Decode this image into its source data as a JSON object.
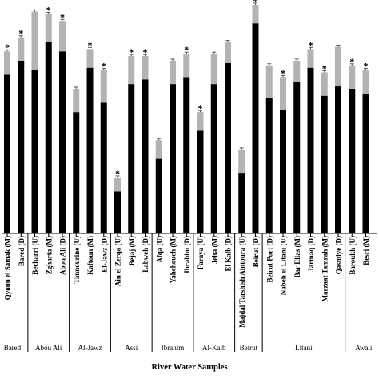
{
  "chart_data": {
    "type": "bar",
    "title": "",
    "xlabel": "River Water Samples",
    "ylabel": "",
    "ylim": [
      0,
      100
    ],
    "bar_color": "#000000",
    "error_color": "#b3b3b3",
    "categories": [
      "Qyoun el Samak (M)",
      "Bared (D)",
      "Becharri (U)",
      "Zgharta (M)",
      "Abou Ali (D)",
      "Tannourine (U)",
      "Kaftoun (M)",
      "El-Jawz (D)",
      "Ain el Zerqa (U)",
      "Bejaj (M)",
      "Labweh (D)",
      "Afqa (U)",
      "Yahchouch (M)",
      "Ibrahim (D)",
      "Faraya (U)",
      "Jeita (M)",
      "El Kalb (D)",
      "Majdal Tarshish Aintoura (U)",
      "Beirut (D)",
      "Beirut Port (D)",
      "Nabeh el Litani (U)",
      "Bar Elias (M)",
      "Jarmaq (D)",
      "Marzaat Tamrah (M)",
      "Qasmiye (D)",
      "Baroukh (U)",
      "Besri (M)"
    ],
    "values": [
      68,
      74,
      70,
      82,
      78,
      52,
      71,
      56,
      18,
      64,
      66,
      32,
      64,
      67,
      44,
      64,
      73,
      26,
      90,
      58,
      53,
      65,
      71,
      59,
      63,
      62,
      60
    ],
    "errors": [
      10,
      10,
      25,
      12,
      13,
      10,
      8,
      14,
      6,
      12,
      10,
      8,
      10,
      10,
      8,
      13,
      9,
      10,
      8,
      14,
      14,
      9,
      8,
      10,
      17,
      10,
      10
    ],
    "significant": [
      true,
      true,
      false,
      true,
      true,
      false,
      true,
      true,
      true,
      true,
      true,
      false,
      false,
      true,
      true,
      false,
      false,
      false,
      true,
      false,
      true,
      false,
      true,
      true,
      false,
      true,
      true
    ],
    "significance_marker": "*",
    "groups": [
      {
        "name": "Bared",
        "start": 0,
        "end": 1
      },
      {
        "name": "Abou Ali",
        "start": 2,
        "end": 4
      },
      {
        "name": "Al-Jawz",
        "start": 5,
        "end": 7
      },
      {
        "name": "Assi",
        "start": 8,
        "end": 10
      },
      {
        "name": "Ibrahim",
        "start": 11,
        "end": 13
      },
      {
        "name": "Al-Kalb",
        "start": 14,
        "end": 16
      },
      {
        "name": "Beirut",
        "start": 17,
        "end": 18
      },
      {
        "name": "Litani",
        "start": 19,
        "end": 24
      },
      {
        "name": "Awali",
        "start": 25,
        "end": 26
      }
    ]
  }
}
